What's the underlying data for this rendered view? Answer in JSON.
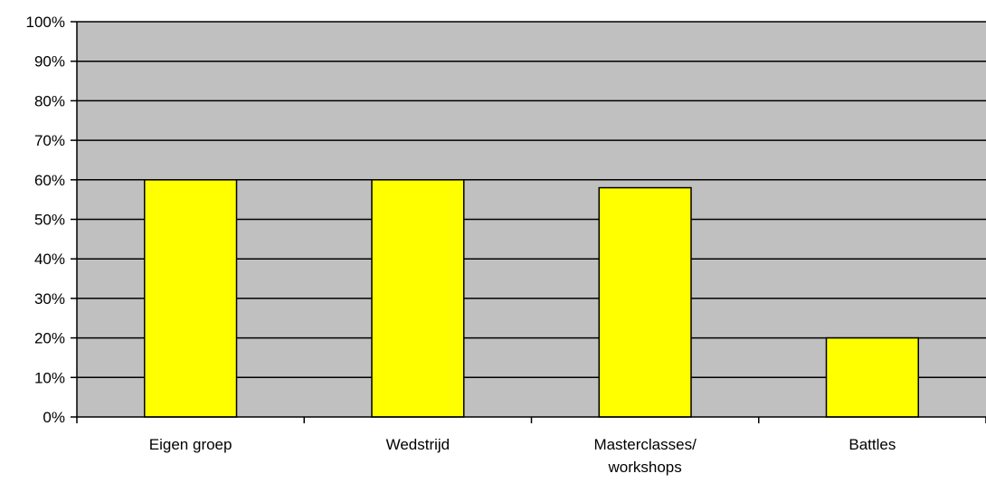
{
  "chart_data": {
    "type": "bar",
    "categories": [
      "Eigen groep",
      "Wedstrijd",
      "Masterclasses/ workshops",
      "Battles"
    ],
    "category_lines": [
      [
        "Eigen groep"
      ],
      [
        "Wedstrijd"
      ],
      [
        "Masterclasses/",
        "workshops"
      ],
      [
        "Battles"
      ]
    ],
    "values": [
      60,
      60,
      58,
      20
    ],
    "ylim": [
      0,
      100
    ],
    "yticks": [
      0,
      10,
      20,
      30,
      40,
      50,
      60,
      70,
      80,
      90,
      100
    ],
    "ytick_labels": [
      "0%",
      "10%",
      "20%",
      "30%",
      "40%",
      "50%",
      "60%",
      "70%",
      "80%",
      "90%",
      "100%"
    ],
    "title": "",
    "xlabel": "",
    "ylabel": "",
    "grid": true,
    "legend": "none",
    "colors": {
      "bar": "#FFFF00",
      "bar_edge": "#000000",
      "plot_background": "#C0C0C0",
      "gridline": "#000000"
    }
  }
}
